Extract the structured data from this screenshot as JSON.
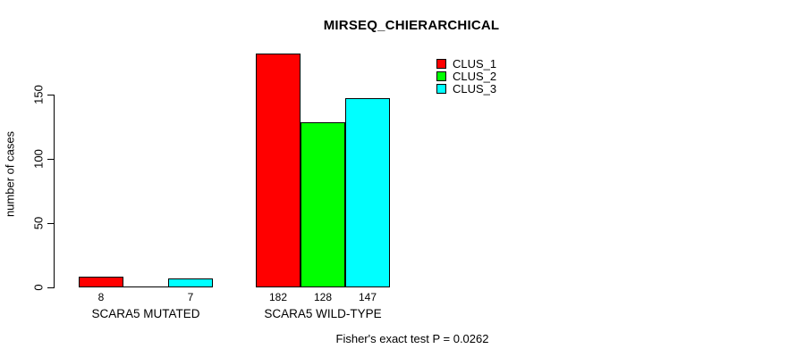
{
  "title": "MIRSEQ_CHIERARCHICAL",
  "ylabel": "number of cases",
  "footer": "Fisher's exact test P = 0.0262",
  "colors": {
    "background": "#FFFFFF",
    "axis": "#000000",
    "text": "#000000"
  },
  "legend": {
    "position": "top-right",
    "items": [
      {
        "label": "CLUS_1",
        "color": "#FF0000"
      },
      {
        "label": "CLUS_2",
        "color": "#00FF00"
      },
      {
        "label": "CLUS_3",
        "color": "#00FFFF"
      }
    ]
  },
  "chart_data": {
    "type": "bar",
    "title": "MIRSEQ_CHIERARCHICAL",
    "xlabel": "",
    "ylabel": "number of cases",
    "categories": [
      "SCARA5 MUTATED",
      "SCARA5 WILD-TYPE"
    ],
    "series": [
      {
        "name": "CLUS_1",
        "color": "#FF0000",
        "values": [
          8,
          182
        ]
      },
      {
        "name": "CLUS_2",
        "color": "#00FF00",
        "values": [
          0,
          128
        ]
      },
      {
        "name": "CLUS_3",
        "color": "#00FFFF",
        "values": [
          7,
          147
        ]
      }
    ],
    "bar_labels": [
      [
        "8",
        "",
        "7"
      ],
      [
        "182",
        "128",
        "147"
      ]
    ],
    "yticks": [
      0,
      50,
      100,
      150
    ],
    "ylim": [
      0,
      150
    ],
    "grid": false,
    "legend_position": "top-right",
    "annotation": "Fisher's exact test P = 0.0262"
  }
}
